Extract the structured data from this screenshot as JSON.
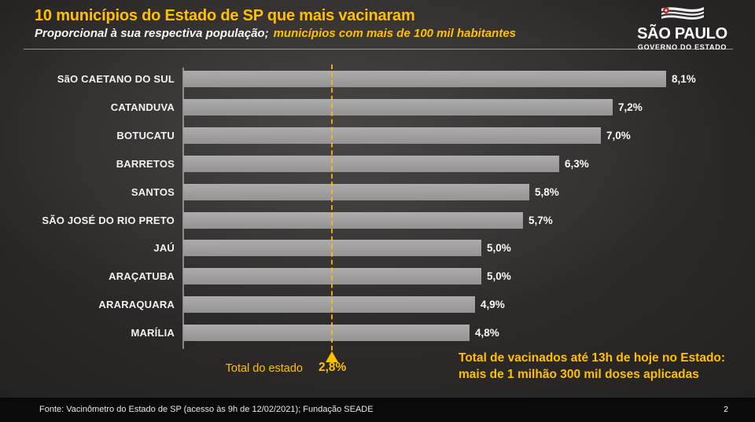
{
  "header": {
    "title": "10 municípios do Estado de SP que mais vacinaram",
    "subtitle": "Proporcional à sua respectiva população;",
    "subtitle_highlight": "municípios com mais de 100 mil habitantes"
  },
  "logo": {
    "title": "SÃO PAULO",
    "subtitle": "GOVERNO DO ESTADO",
    "flag_icon": "sao-paulo-flag-icon"
  },
  "chart_data": {
    "type": "bar",
    "orientation": "horizontal",
    "categories": [
      "SãO CAETANO DO SUL",
      "CATANDUVA",
      "BOTUCATU",
      "BARRETOS",
      "SANTOS",
      "SÃO JOSÉ DO RIO PRETO",
      "JAÚ",
      "ARAÇATUBA",
      "ARARAQUARA",
      "MARÍLIA"
    ],
    "values": [
      8.1,
      7.2,
      7.0,
      6.3,
      5.8,
      5.7,
      5.0,
      5.0,
      4.9,
      4.8
    ],
    "value_labels": [
      "8,1%",
      "7,2%",
      "7,0%",
      "6,3%",
      "5,8%",
      "5,7%",
      "5,0%",
      "5,0%",
      "4,9%",
      "4,8%"
    ],
    "xlim": [
      0,
      9
    ],
    "grid": false,
    "legend": "none",
    "bar_color": "#a09e9e",
    "reference_line": {
      "label": "Total do estado",
      "value": 2.8,
      "value_label": "2,8%",
      "color": "#FFC000",
      "style": "dashed-vertical",
      "marker": "triangle-up"
    }
  },
  "annotation": {
    "line1": "Total de vacinados até 13h de hoje no Estado:",
    "line2": "mais de 1 milhão 300 mil doses aplicadas"
  },
  "footer": {
    "source": "Fonte: Vacinômetro do Estado de SP (acesso às 9h de 12/02/2021); Fundação SEADE",
    "page_number": "2"
  },
  "colors": {
    "accent_yellow": "#FFC000",
    "bar_gray": "#a09e9e",
    "background_dark": "#262322",
    "footer_black": "#0a0a0a",
    "text_white": "#f2f2f2",
    "flag_red": "#c9252c"
  }
}
